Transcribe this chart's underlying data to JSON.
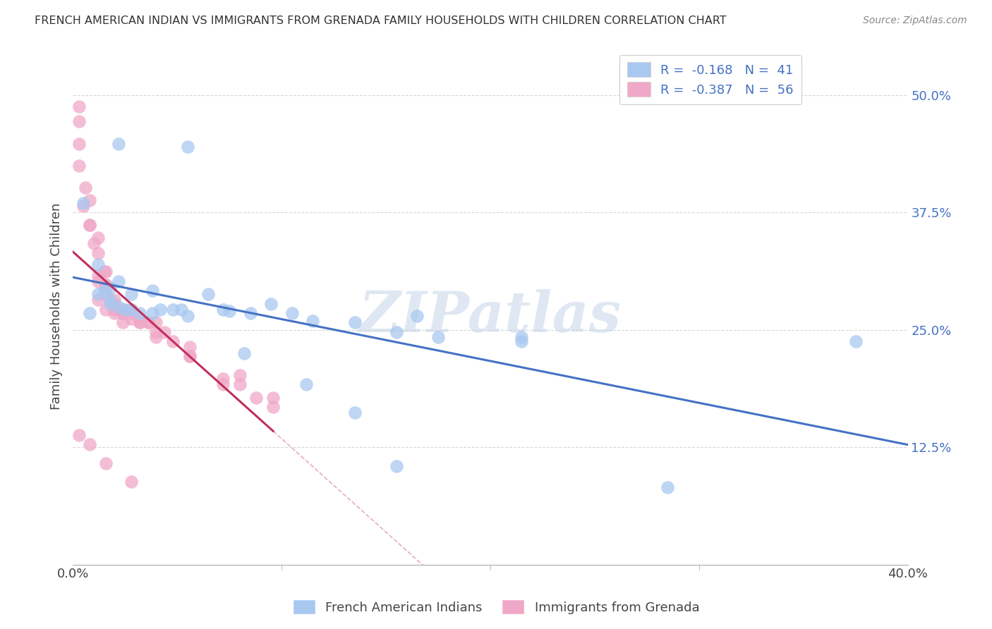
{
  "title": "FRENCH AMERICAN INDIAN VS IMMIGRANTS FROM GRENADA FAMILY HOUSEHOLDS WITH CHILDREN CORRELATION CHART",
  "source": "Source: ZipAtlas.com",
  "ylabel": "Family Households with Children",
  "ytick_labels": [
    "12.5%",
    "25.0%",
    "37.5%",
    "50.0%"
  ],
  "ytick_values": [
    0.125,
    0.25,
    0.375,
    0.5
  ],
  "xlim": [
    0.0,
    0.4
  ],
  "ylim": [
    0.0,
    0.55
  ],
  "legend_R1": "-0.168",
  "legend_N1": "41",
  "legend_R2": "-0.387",
  "legend_N2": "56",
  "color_blue": "#a8c8f0",
  "color_pink": "#f0a8c8",
  "line_blue": "#4472C4",
  "line_pink": "#c0305a",
  "watermark": "ZIPatlas",
  "blue_scatter_x": [
    0.022,
    0.055,
    0.005,
    0.012,
    0.018,
    0.012,
    0.018,
    0.022,
    0.028,
    0.032,
    0.038,
    0.048,
    0.055,
    0.075,
    0.085,
    0.095,
    0.105,
    0.115,
    0.135,
    0.155,
    0.165,
    0.175,
    0.015,
    0.022,
    0.028,
    0.038,
    0.042,
    0.052,
    0.065,
    0.072,
    0.082,
    0.112,
    0.135,
    0.155,
    0.215,
    0.375,
    0.008,
    0.018,
    0.025,
    0.285,
    0.215
  ],
  "blue_scatter_y": [
    0.448,
    0.445,
    0.385,
    0.32,
    0.295,
    0.288,
    0.278,
    0.275,
    0.272,
    0.268,
    0.268,
    0.272,
    0.265,
    0.27,
    0.268,
    0.278,
    0.268,
    0.26,
    0.258,
    0.248,
    0.265,
    0.242,
    0.292,
    0.302,
    0.288,
    0.292,
    0.272,
    0.272,
    0.288,
    0.272,
    0.225,
    0.192,
    0.162,
    0.105,
    0.238,
    0.238,
    0.268,
    0.282,
    0.272,
    0.082,
    0.242
  ],
  "pink_scatter_x": [
    0.003,
    0.003,
    0.003,
    0.006,
    0.008,
    0.008,
    0.012,
    0.012,
    0.012,
    0.012,
    0.016,
    0.016,
    0.016,
    0.016,
    0.02,
    0.02,
    0.02,
    0.024,
    0.024,
    0.024,
    0.028,
    0.028,
    0.032,
    0.032,
    0.036,
    0.04,
    0.04,
    0.044,
    0.048,
    0.056,
    0.056,
    0.072,
    0.08,
    0.096,
    0.003,
    0.005,
    0.008,
    0.01,
    0.012,
    0.015,
    0.016,
    0.02,
    0.024,
    0.028,
    0.032,
    0.036,
    0.04,
    0.056,
    0.072,
    0.088,
    0.003,
    0.008,
    0.016,
    0.028,
    0.08,
    0.096
  ],
  "pink_scatter_y": [
    0.488,
    0.448,
    0.425,
    0.402,
    0.388,
    0.362,
    0.348,
    0.332,
    0.308,
    0.302,
    0.312,
    0.298,
    0.288,
    0.272,
    0.282,
    0.272,
    0.268,
    0.272,
    0.268,
    0.258,
    0.268,
    0.262,
    0.258,
    0.258,
    0.258,
    0.258,
    0.242,
    0.248,
    0.238,
    0.232,
    0.222,
    0.198,
    0.192,
    0.178,
    0.472,
    0.382,
    0.362,
    0.342,
    0.282,
    0.312,
    0.298,
    0.278,
    0.268,
    0.272,
    0.262,
    0.258,
    0.248,
    0.222,
    0.192,
    0.178,
    0.138,
    0.128,
    0.108,
    0.088,
    0.202,
    0.168
  ],
  "grid_color": "#cccccc",
  "background_color": "#ffffff"
}
